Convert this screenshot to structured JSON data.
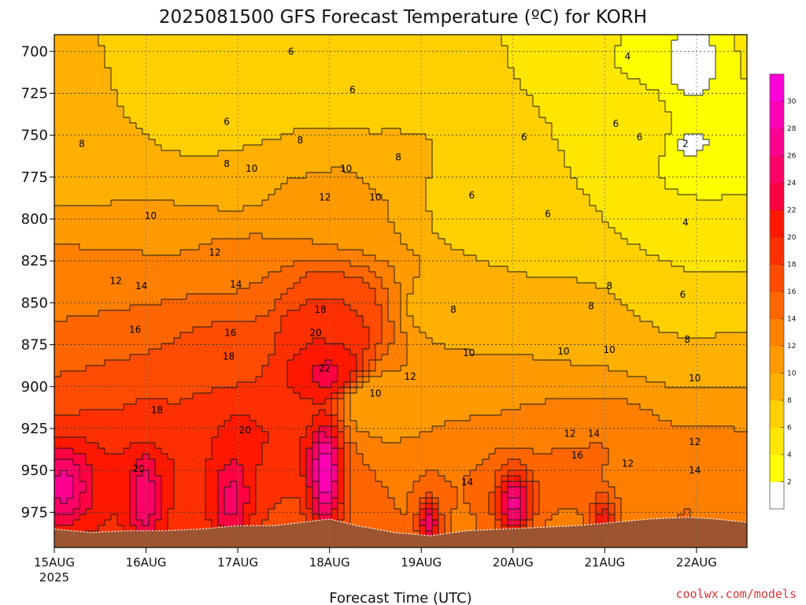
{
  "chart_data": {
    "type": "contour",
    "title": "2025081500 GFS Forecast Temperature (ºC) for KORH",
    "xlabel": "Forecast Time (UTC)",
    "credit": "coolwx.com/models",
    "x_ticks": [
      "15AUG",
      "16AUG",
      "17AUG",
      "18AUG",
      "19AUG",
      "20AUG",
      "21AUG",
      "22AUG"
    ],
    "x_year": "2025",
    "x_range_days": [
      0,
      7.55
    ],
    "y_label_values": [
      700,
      725,
      750,
      775,
      800,
      825,
      850,
      875,
      900,
      925,
      950,
      975
    ],
    "y_range_hpa": [
      690,
      996
    ],
    "grid": true,
    "colorbar": {
      "levels": [
        0,
        2,
        4,
        6,
        8,
        10,
        12,
        14,
        16,
        18,
        20,
        22,
        24,
        26,
        28,
        30,
        32
      ],
      "tick_labels": [
        "2",
        "4",
        "6",
        "8",
        "10",
        "12",
        "14",
        "16",
        "18",
        "20",
        "22",
        "24",
        "26",
        "28",
        "30"
      ],
      "colors": [
        "#ffffff",
        "#ffff00",
        "#ffe600",
        "#ffd000",
        "#ffb000",
        "#ff9a00",
        "#ff8000",
        "#ff6600",
        "#ff4c00",
        "#ff3000",
        "#ff1800",
        "#ff0040",
        "#ff0066",
        "#ff0090",
        "#ff00b4",
        "#ff00d8"
      ]
    },
    "contour_labels": [
      {
        "v": "6",
        "d": 2.58,
        "p": 700
      },
      {
        "v": "4",
        "d": 6.25,
        "p": 703
      },
      {
        "v": "6",
        "d": 3.25,
        "p": 723
      },
      {
        "v": "6",
        "d": 6.12,
        "p": 743
      },
      {
        "v": "6",
        "d": 1.88,
        "p": 742
      },
      {
        "v": "6",
        "d": 5.12,
        "p": 751
      },
      {
        "v": "6",
        "d": 6.38,
        "p": 751
      },
      {
        "v": "2",
        "d": 6.88,
        "p": 755
      },
      {
        "v": "8",
        "d": 0.3,
        "p": 755
      },
      {
        "v": "8",
        "d": 2.68,
        "p": 753
      },
      {
        "v": "8",
        "d": 3.75,
        "p": 763
      },
      {
        "v": "8",
        "d": 1.88,
        "p": 767
      },
      {
        "v": "10",
        "d": 2.15,
        "p": 770
      },
      {
        "v": "10",
        "d": 3.18,
        "p": 770
      },
      {
        "v": "6",
        "d": 4.55,
        "p": 786
      },
      {
        "v": "10",
        "d": 3.5,
        "p": 787
      },
      {
        "v": "12",
        "d": 2.95,
        "p": 787
      },
      {
        "v": "10",
        "d": 1.05,
        "p": 798
      },
      {
        "v": "6",
        "d": 5.38,
        "p": 797
      },
      {
        "v": "4",
        "d": 6.88,
        "p": 802
      },
      {
        "v": "12",
        "d": 1.75,
        "p": 820
      },
      {
        "v": "12",
        "d": 0.67,
        "p": 837
      },
      {
        "v": "14",
        "d": 0.95,
        "p": 840
      },
      {
        "v": "14",
        "d": 1.98,
        "p": 839
      },
      {
        "v": "8",
        "d": 6.05,
        "p": 840
      },
      {
        "v": "6",
        "d": 6.85,
        "p": 845
      },
      {
        "v": "8",
        "d": 5.85,
        "p": 852
      },
      {
        "v": "8",
        "d": 4.35,
        "p": 854
      },
      {
        "v": "18",
        "d": 2.9,
        "p": 854
      },
      {
        "v": "16",
        "d": 0.88,
        "p": 866
      },
      {
        "v": "16",
        "d": 1.92,
        "p": 868
      },
      {
        "v": "8",
        "d": 6.9,
        "p": 872
      },
      {
        "v": "20",
        "d": 2.85,
        "p": 868
      },
      {
        "v": "10",
        "d": 6.05,
        "p": 878
      },
      {
        "v": "10",
        "d": 5.55,
        "p": 879
      },
      {
        "v": "10",
        "d": 4.52,
        "p": 880
      },
      {
        "v": "18",
        "d": 1.9,
        "p": 882
      },
      {
        "v": "12",
        "d": 3.88,
        "p": 894
      },
      {
        "v": "10",
        "d": 6.98,
        "p": 895
      },
      {
        "v": "22",
        "d": 2.95,
        "p": 889
      },
      {
        "v": "10",
        "d": 3.5,
        "p": 904
      },
      {
        "v": "18",
        "d": 1.12,
        "p": 914
      },
      {
        "v": "20",
        "d": 2.08,
        "p": 926
      },
      {
        "v": "12",
        "d": 5.62,
        "p": 928
      },
      {
        "v": "14",
        "d": 5.88,
        "p": 928
      },
      {
        "v": "12",
        "d": 6.98,
        "p": 933
      },
      {
        "v": "16",
        "d": 5.7,
        "p": 941
      },
      {
        "v": "12",
        "d": 6.25,
        "p": 946
      },
      {
        "v": "20",
        "d": 0.92,
        "p": 949
      },
      {
        "v": "14",
        "d": 6.98,
        "p": 950
      },
      {
        "v": "14",
        "d": 4.5,
        "p": 957
      }
    ],
    "hot_cores": [
      {
        "d": 0.05,
        "p": 958,
        "peak": 27,
        "w": 0.35,
        "h": 55
      },
      {
        "d": 0.95,
        "p": 966,
        "peak": 26,
        "w": 0.18,
        "h": 60
      },
      {
        "d": 1.9,
        "p": 966,
        "peak": 25,
        "w": 0.22,
        "h": 58
      },
      {
        "d": 2.92,
        "p": 950,
        "peak": 30,
        "w": 0.2,
        "h": 75
      },
      {
        "d": 4.05,
        "p": 980,
        "peak": 26,
        "w": 0.12,
        "h": 32
      },
      {
        "d": 4.98,
        "p": 968,
        "peak": 27,
        "w": 0.2,
        "h": 45
      },
      {
        "d": 5.95,
        "p": 978,
        "peak": 21,
        "w": 0.15,
        "h": 35
      },
      {
        "d": 6.85,
        "p": 985,
        "peak": 20,
        "w": 0.08,
        "h": 18
      }
    ],
    "ground_hpa": [
      [
        0.0,
        985
      ],
      [
        0.4,
        987
      ],
      [
        0.8,
        986
      ],
      [
        1.2,
        986
      ],
      [
        1.6,
        985
      ],
      [
        2.0,
        983
      ],
      [
        2.4,
        983
      ],
      [
        2.7,
        981
      ],
      [
        3.0,
        979
      ],
      [
        3.3,
        983
      ],
      [
        3.7,
        987
      ],
      [
        4.1,
        989
      ],
      [
        4.5,
        986
      ],
      [
        4.9,
        985
      ],
      [
        5.3,
        984
      ],
      [
        5.7,
        983
      ],
      [
        6.1,
        981
      ],
      [
        6.5,
        979
      ],
      [
        6.9,
        978
      ],
      [
        7.2,
        979
      ],
      [
        7.55,
        981
      ]
    ],
    "ground_color": "#9c5530"
  }
}
